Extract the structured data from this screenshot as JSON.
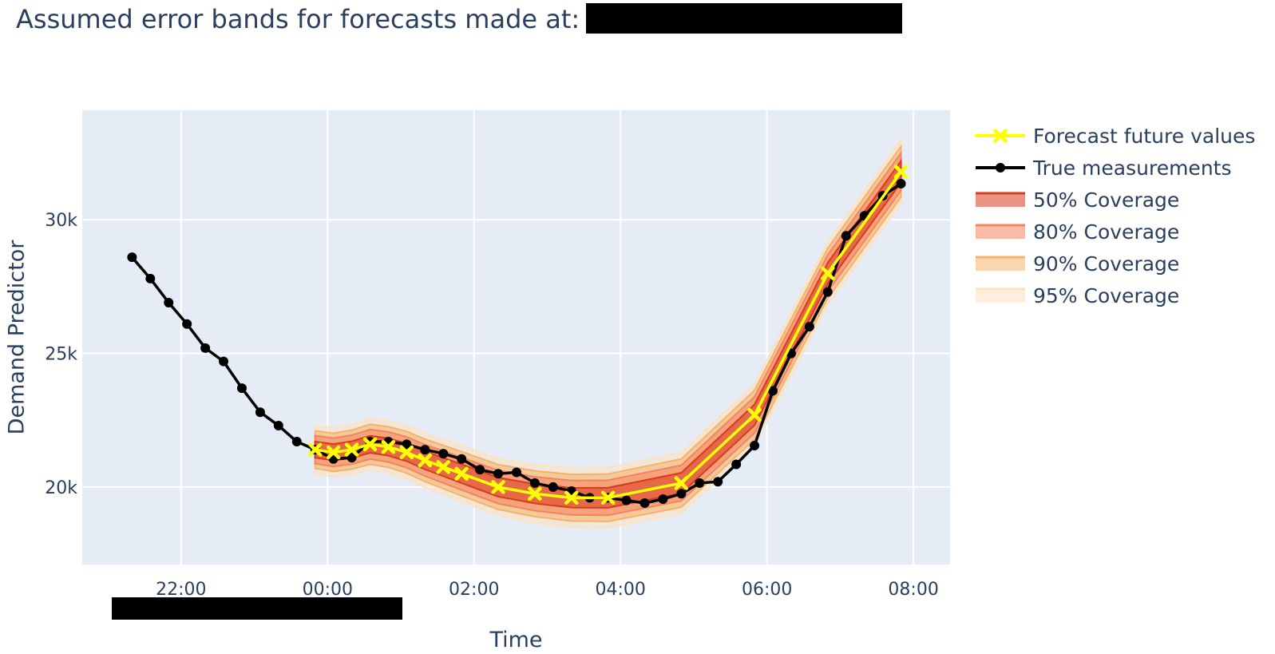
{
  "chart_data": {
    "type": "line",
    "title": "Assumed error bands for forecasts made at:",
    "xlabel": "Time",
    "ylabel": "Demand Predictor",
    "x_ticks": [
      "22:00",
      "00:00",
      "02:00",
      "04:00",
      "06:00",
      "08:00"
    ],
    "x_tick_hours": [
      -2,
      0,
      2,
      4,
      6,
      8
    ],
    "y_ticks": [
      "20k",
      "25k",
      "30k"
    ],
    "y_tick_values": [
      20000,
      25000,
      30000
    ],
    "xlim_hours": [
      -3.35,
      8.5
    ],
    "ylim": [
      17100,
      34100
    ],
    "grid": true,
    "legend_position": "top-right outside",
    "colors": {
      "plot_bg": "#e5ecf6",
      "grid": "#ffffff",
      "forecast": "#ffff00",
      "true": "#000000",
      "band_50": "#d93a1e",
      "band_80": "#f4845f",
      "band_90": "#f7b26a",
      "band_95": "#fde2c0"
    },
    "series": [
      {
        "name": "True measurements",
        "x_hours": [
          -2.67,
          -2.42,
          -2.17,
          -1.92,
          -1.67,
          -1.42,
          -1.17,
          -0.92,
          -0.67,
          -0.42,
          -0.17,
          0.08,
          0.33,
          0.58,
          0.83,
          1.08,
          1.33,
          1.58,
          1.83,
          2.08,
          2.33,
          2.58,
          2.83,
          3.08,
          3.33,
          3.58,
          3.83,
          4.08,
          4.33,
          4.58,
          4.83,
          5.08,
          5.33,
          5.58,
          5.83,
          6.08,
          6.33,
          6.58,
          6.83,
          7.08,
          7.33,
          7.58,
          7.83
        ],
        "values": [
          28600,
          27800,
          26900,
          26100,
          25200,
          24700,
          23700,
          22800,
          22300,
          21700,
          21400,
          21050,
          21100,
          21700,
          21700,
          21600,
          21400,
          21250,
          21050,
          20650,
          20500,
          20550,
          20150,
          20000,
          19850,
          19600,
          19600,
          19500,
          19400,
          19550,
          19750,
          20150,
          20200,
          20850,
          21550,
          23600,
          25000,
          26000,
          27300,
          29400,
          30150,
          30900,
          31350
        ]
      },
      {
        "name": "Forecast future values",
        "x_hours": [
          -0.17,
          0.08,
          0.33,
          0.58,
          0.83,
          1.08,
          1.33,
          1.58,
          1.83,
          2.33,
          2.83,
          3.33,
          3.83,
          4.83,
          5.83,
          6.83,
          7.83
        ],
        "values": [
          21400,
          21300,
          21400,
          21600,
          21500,
          21300,
          21000,
          20750,
          20500,
          20000,
          19750,
          19600,
          19600,
          20150,
          22700,
          28000,
          31800
        ]
      }
    ],
    "bands": [
      {
        "name": "95% Coverage",
        "half_width": [
          900,
          1200
        ]
      },
      {
        "name": "90% Coverage",
        "half_width": [
          700,
          950
        ]
      },
      {
        "name": "80% Coverage",
        "half_width": [
          520,
          700
        ]
      },
      {
        "name": "50% Coverage",
        "half_width": [
          300,
          400
        ]
      }
    ],
    "legend": [
      {
        "label": "Forecast future values",
        "kind": "forecast"
      },
      {
        "label": "True measurements",
        "kind": "true"
      },
      {
        "label": "50% Coverage",
        "kind": "band_50"
      },
      {
        "label": "80% Coverage",
        "kind": "band_80"
      },
      {
        "label": "90% Coverage",
        "kind": "band_90"
      },
      {
        "label": "95% Coverage",
        "kind": "band_95"
      }
    ]
  }
}
